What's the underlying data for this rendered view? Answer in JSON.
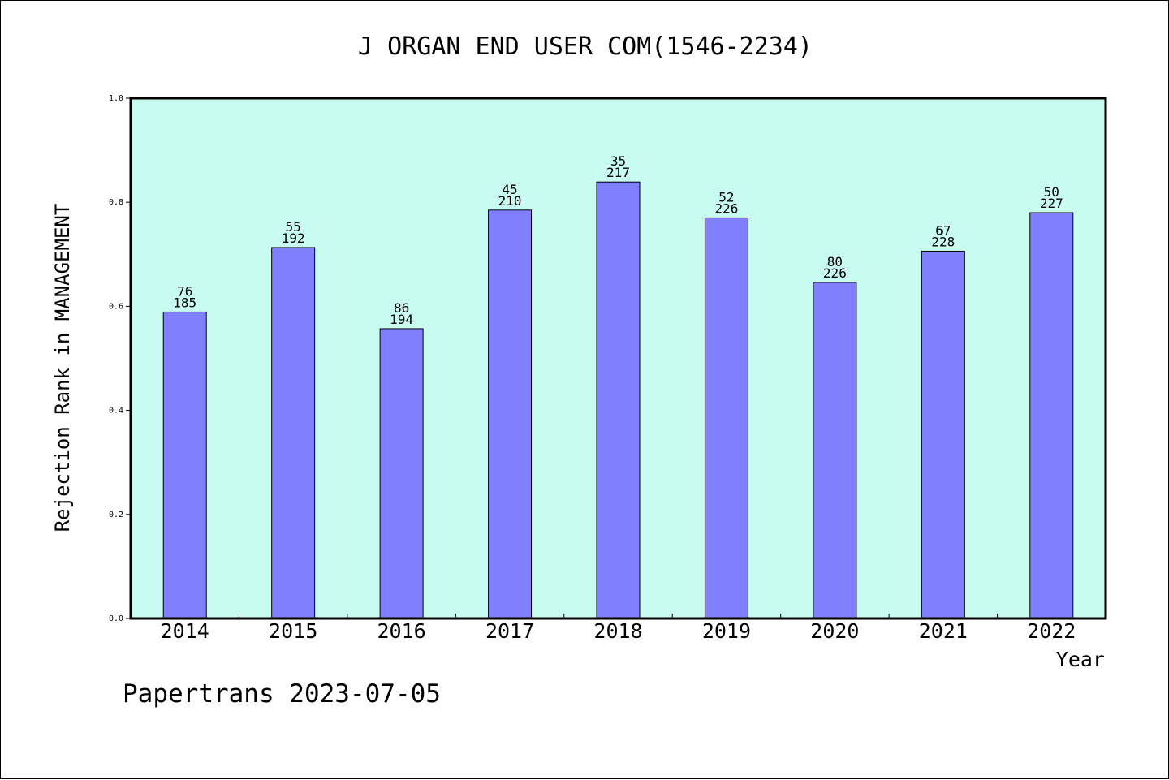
{
  "chart_data": {
    "type": "bar",
    "title": "J ORGAN END USER COM(1546-2234)",
    "xlabel": "Year",
    "ylabel": "Rejection Rank in MANAGEMENT",
    "ylim": [
      0.0,
      1.0
    ],
    "yticks": [
      "0.0",
      "0.2",
      "0.4",
      "0.6",
      "0.8",
      "1.0"
    ],
    "categories": [
      "2014",
      "2015",
      "2016",
      "2017",
      "2018",
      "2019",
      "2020",
      "2021",
      "2022"
    ],
    "values": [
      0.589,
      0.713,
      0.557,
      0.785,
      0.839,
      0.77,
      0.646,
      0.706,
      0.78
    ],
    "label_top": [
      "76",
      "55",
      "86",
      "45",
      "35",
      "52",
      "80",
      "67",
      "50"
    ],
    "label_bottom": [
      "185",
      "192",
      "194",
      "210",
      "217",
      "226",
      "226",
      "228",
      "227"
    ],
    "grid": false,
    "legend": "none",
    "colors": {
      "plot_background": "#c8fcf0",
      "bar_fill": "#8080ff",
      "bar_stroke": "#000000",
      "axis": "#000000"
    }
  },
  "footer": {
    "credit": "Papertrans 2023-07-05"
  }
}
